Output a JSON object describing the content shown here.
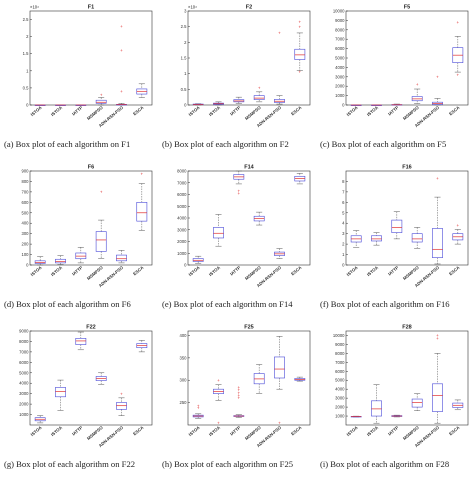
{
  "algorithms": [
    "ISTOA",
    "ISTOA",
    "IATTP",
    "MSMPSO",
    "ADN-RSN-PSO",
    "ESCA"
  ],
  "colors": {
    "box": "#4a4ad8",
    "median": "#e03030",
    "whisker": "#555555",
    "outlier": "#e03030"
  },
  "chart_data": [
    {
      "type": "box",
      "title": "F1",
      "caption": "(a) Box plot of each algorithm on F1",
      "exponent": "×10⁴",
      "ylim": [
        0,
        2.75
      ],
      "yticks": [
        0,
        0.5,
        1,
        1.5,
        2,
        2.5
      ],
      "ytick_labels": [
        "0",
        "0.5",
        "1",
        "1.5",
        "2",
        "2.5"
      ],
      "boxes": [
        {
          "min": 0,
          "q1": 0,
          "median": 0,
          "q3": 0,
          "max": 0,
          "outliers": []
        },
        {
          "min": 0,
          "q1": 0,
          "median": 0,
          "q3": 0,
          "max": 0,
          "outliers": []
        },
        {
          "min": 0,
          "q1": 0,
          "median": 0,
          "q3": 0,
          "max": 0,
          "outliers": []
        },
        {
          "min": 0,
          "q1": 0.05,
          "median": 0.08,
          "q3": 0.14,
          "max": 0.22,
          "outliers": [
            0.3
          ]
        },
        {
          "min": 0,
          "q1": 0,
          "median": 0.01,
          "q3": 0.02,
          "max": 0.05,
          "outliers": [
            0.4,
            1.6,
            2.3
          ]
        },
        {
          "min": 0.22,
          "q1": 0.32,
          "median": 0.4,
          "q3": 0.47,
          "max": 0.62,
          "outliers": []
        }
      ]
    },
    {
      "type": "box",
      "title": "F2",
      "caption": "(b) Box plot of each algorithm on F2",
      "exponent": "×10⁴",
      "ylim": [
        0,
        3
      ],
      "yticks": [
        0,
        0.5,
        1,
        1.5,
        2,
        2.5,
        3
      ],
      "ytick_labels": [
        "0",
        "0.5",
        "1",
        "1.5",
        "2",
        "2.5",
        "3"
      ],
      "boxes": [
        {
          "min": 0,
          "q1": 0.01,
          "median": 0.02,
          "q3": 0.03,
          "max": 0.04,
          "outliers": []
        },
        {
          "min": 0,
          "q1": 0.02,
          "median": 0.04,
          "q3": 0.06,
          "max": 0.1,
          "outliers": []
        },
        {
          "min": 0.05,
          "q1": 0.1,
          "median": 0.13,
          "q3": 0.17,
          "max": 0.25,
          "outliers": []
        },
        {
          "min": 0.1,
          "q1": 0.17,
          "median": 0.22,
          "q3": 0.3,
          "max": 0.42,
          "outliers": [
            0.55
          ]
        },
        {
          "min": 0.03,
          "q1": 0.08,
          "median": 0.12,
          "q3": 0.18,
          "max": 0.3,
          "outliers": [
            2.3
          ]
        },
        {
          "min": 1.1,
          "q1": 1.45,
          "median": 1.6,
          "q3": 1.78,
          "max": 2.3,
          "outliers": [
            2.5,
            2.65,
            1.05
          ]
        }
      ]
    },
    {
      "type": "box",
      "title": "F5",
      "caption": "(c) Box plot of each algorithm on F5",
      "exponent": "",
      "ylim": [
        0,
        10000
      ],
      "yticks": [
        0,
        1000,
        2000,
        3000,
        4000,
        5000,
        6000,
        7000,
        8000,
        9000,
        10000
      ],
      "ytick_labels": [
        "0",
        "1000",
        "2000",
        "3000",
        "4000",
        "5000",
        "6000",
        "7000",
        "8000",
        "9000",
        "10000"
      ],
      "boxes": [
        {
          "min": 0,
          "q1": 0,
          "median": 0,
          "q3": 0,
          "max": 0,
          "outliers": []
        },
        {
          "min": 0,
          "q1": 0,
          "median": 0,
          "q3": 0,
          "max": 0,
          "outliers": []
        },
        {
          "min": 0,
          "q1": 0,
          "median": 20,
          "q3": 50,
          "max": 100,
          "outliers": []
        },
        {
          "min": 150,
          "q1": 450,
          "median": 650,
          "q3": 900,
          "max": 1700,
          "outliers": [
            2200
          ]
        },
        {
          "min": 0,
          "q1": 50,
          "median": 150,
          "q3": 300,
          "max": 700,
          "outliers": [
            3000
          ]
        },
        {
          "min": 3500,
          "q1": 4500,
          "median": 5300,
          "q3": 6100,
          "max": 7300,
          "outliers": [
            8800,
            3200
          ]
        }
      ]
    },
    {
      "type": "box",
      "title": "F6",
      "caption": "(d) Box plot of each algorithm on F6",
      "exponent": "",
      "ylim": [
        0,
        900
      ],
      "yticks": [
        0,
        100,
        200,
        300,
        400,
        500,
        600,
        700,
        800,
        900
      ],
      "ytick_labels": [
        "0",
        "100",
        "200",
        "300",
        "400",
        "500",
        "600",
        "700",
        "800",
        "900"
      ],
      "boxes": [
        {
          "min": 0,
          "q1": 15,
          "median": 25,
          "q3": 40,
          "max": 80,
          "outliers": []
        },
        {
          "min": 5,
          "q1": 20,
          "median": 35,
          "q3": 55,
          "max": 90,
          "outliers": []
        },
        {
          "min": 20,
          "q1": 60,
          "median": 85,
          "q3": 115,
          "max": 170,
          "outliers": []
        },
        {
          "min": 60,
          "q1": 130,
          "median": 240,
          "q3": 320,
          "max": 430,
          "outliers": [
            700
          ]
        },
        {
          "min": 20,
          "q1": 40,
          "median": 60,
          "q3": 95,
          "max": 140,
          "outliers": []
        },
        {
          "min": 330,
          "q1": 420,
          "median": 500,
          "q3": 600,
          "max": 780,
          "outliers": [
            870
          ]
        }
      ]
    },
    {
      "type": "box",
      "title": "F14",
      "caption": "(e) Box plot of each algorithm on F14",
      "exponent": "",
      "ylim": [
        0,
        8000
      ],
      "yticks": [
        0,
        1000,
        2000,
        3000,
        4000,
        5000,
        6000,
        7000,
        8000
      ],
      "ytick_labels": [
        "0",
        "1000",
        "2000",
        "3000",
        "4000",
        "5000",
        "6000",
        "7000",
        "8000"
      ],
      "boxes": [
        {
          "min": 150,
          "q1": 300,
          "median": 400,
          "q3": 550,
          "max": 750,
          "outliers": []
        },
        {
          "min": 1600,
          "q1": 2300,
          "median": 2700,
          "q3": 3200,
          "max": 4300,
          "outliers": []
        },
        {
          "min": 6900,
          "q1": 7300,
          "median": 7500,
          "q3": 7700,
          "max": 8000,
          "outliers": [
            6300,
            6100
          ]
        },
        {
          "min": 3400,
          "q1": 3750,
          "median": 3950,
          "q3": 4150,
          "max": 4500,
          "outliers": []
        },
        {
          "min": 550,
          "q1": 800,
          "median": 950,
          "q3": 1100,
          "max": 1400,
          "outliers": []
        },
        {
          "min": 6900,
          "q1": 7150,
          "median": 7350,
          "q3": 7550,
          "max": 7800,
          "outliers": []
        }
      ]
    },
    {
      "type": "box",
      "title": "F16",
      "caption": "(f) Box plot of each algorithm on F16",
      "exponent": "",
      "ylim": [
        0,
        9
      ],
      "yticks": [
        0,
        1,
        2,
        3,
        4,
        5,
        6,
        7,
        8
      ],
      "ytick_labels": [
        "0",
        "1",
        "2",
        "3",
        "4",
        "5",
        "6",
        "7",
        "8"
      ],
      "boxes": [
        {
          "min": 1.7,
          "q1": 2.2,
          "median": 2.5,
          "q3": 2.8,
          "max": 3.3,
          "outliers": []
        },
        {
          "min": 1.9,
          "q1": 2.3,
          "median": 2.5,
          "q3": 2.8,
          "max": 3.1,
          "outliers": []
        },
        {
          "min": 2.5,
          "q1": 3.1,
          "median": 3.6,
          "q3": 4.3,
          "max": 5.1,
          "outliers": []
        },
        {
          "min": 1.6,
          "q1": 2.2,
          "median": 2.5,
          "q3": 3.0,
          "max": 3.6,
          "outliers": []
        },
        {
          "min": 0.1,
          "q1": 0.7,
          "median": 1.5,
          "q3": 3.5,
          "max": 6.5,
          "outliers": [
            8.3
          ]
        },
        {
          "min": 2.0,
          "q1": 2.4,
          "median": 2.7,
          "q3": 3.0,
          "max": 3.4,
          "outliers": [
            3.8
          ]
        }
      ]
    },
    {
      "type": "box",
      "title": "F22",
      "caption": "(g) Box plot of each algorithm on F22",
      "exponent": "",
      "ylim": [
        0,
        9000
      ],
      "yticks": [
        1000,
        2000,
        3000,
        4000,
        5000,
        6000,
        7000,
        8000,
        9000
      ],
      "ytick_labels": [
        "1000",
        "2000",
        "3000",
        "4000",
        "5000",
        "6000",
        "7000",
        "8000",
        "9000"
      ],
      "boxes": [
        {
          "min": 200,
          "q1": 400,
          "median": 550,
          "q3": 700,
          "max": 900,
          "outliers": []
        },
        {
          "min": 1400,
          "q1": 2700,
          "median": 3200,
          "q3": 3600,
          "max": 4300,
          "outliers": []
        },
        {
          "min": 7200,
          "q1": 7700,
          "median": 8050,
          "q3": 8300,
          "max": 8900,
          "outliers": []
        },
        {
          "min": 3900,
          "q1": 4250,
          "median": 4450,
          "q3": 4650,
          "max": 5000,
          "outliers": []
        },
        {
          "min": 900,
          "q1": 1500,
          "median": 1850,
          "q3": 2150,
          "max": 2600,
          "outliers": [
            3000
          ]
        },
        {
          "min": 7000,
          "q1": 7400,
          "median": 7600,
          "q3": 7800,
          "max": 8100,
          "outliers": []
        }
      ]
    },
    {
      "type": "box",
      "title": "F25",
      "caption": "(h) Box plot of each algorithm on F25",
      "exponent": "",
      "ylim": [
        200,
        410
      ],
      "yticks": [
        250,
        300,
        350,
        400
      ],
      "ytick_labels": [
        "250",
        "300",
        "350",
        "400"
      ],
      "boxes": [
        {
          "min": 215,
          "q1": 218,
          "median": 220,
          "q3": 222,
          "max": 225,
          "outliers": [
            238,
            243
          ]
        },
        {
          "min": 255,
          "q1": 270,
          "median": 275,
          "q3": 280,
          "max": 290,
          "outliers": [
            300,
            205
          ]
        },
        {
          "min": 217,
          "q1": 219,
          "median": 220,
          "q3": 221,
          "max": 223,
          "outliers": [
            260,
            266,
            272,
            278,
            284
          ]
        },
        {
          "min": 270,
          "q1": 292,
          "median": 303,
          "q3": 315,
          "max": 335,
          "outliers": []
        },
        {
          "min": 280,
          "q1": 305,
          "median": 325,
          "q3": 352,
          "max": 398,
          "outliers": [
            205
          ]
        },
        {
          "min": 298,
          "q1": 300,
          "median": 302,
          "q3": 304,
          "max": 307,
          "outliers": []
        }
      ]
    },
    {
      "type": "box",
      "title": "F28",
      "caption": "(i) Box plot of each algorithm on F28",
      "exponent": "",
      "ylim": [
        0,
        10500
      ],
      "yticks": [
        1000,
        2000,
        3000,
        4000,
        5000,
        6000,
        7000,
        8000,
        9000,
        10000
      ],
      "ytick_labels": [
        "1000",
        "2000",
        "3000",
        "4000",
        "5000",
        "6000",
        "7000",
        "8000",
        "9000",
        "10000"
      ],
      "boxes": [
        {
          "min": 900,
          "q1": 920,
          "median": 940,
          "q3": 960,
          "max": 990,
          "outliers": []
        },
        {
          "min": 200,
          "q1": 1000,
          "median": 1800,
          "q3": 2700,
          "max": 4500,
          "outliers": []
        },
        {
          "min": 900,
          "q1": 950,
          "median": 1000,
          "q3": 1050,
          "max": 1100,
          "outliers": []
        },
        {
          "min": 1600,
          "q1": 2000,
          "median": 2500,
          "q3": 2900,
          "max": 3500,
          "outliers": []
        },
        {
          "min": 200,
          "q1": 1500,
          "median": 3300,
          "q3": 4600,
          "max": 8000,
          "outliers": [
            10000,
            9700
          ]
        },
        {
          "min": 1700,
          "q1": 1950,
          "median": 2200,
          "q3": 2450,
          "max": 2800,
          "outliers": []
        }
      ]
    }
  ]
}
